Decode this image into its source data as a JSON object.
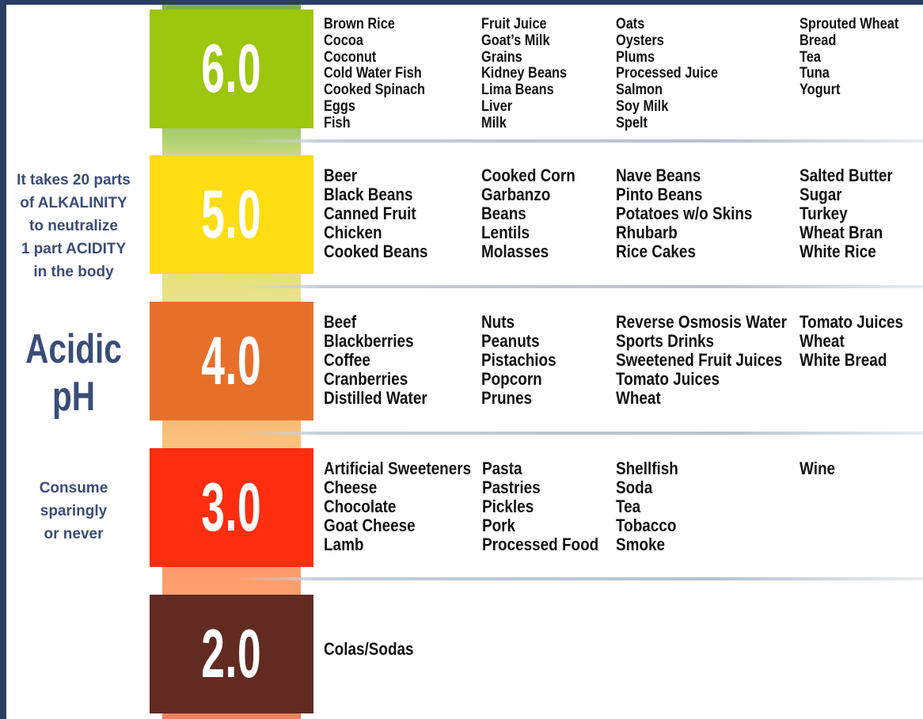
{
  "side": {
    "note_lines": [
      "It takes 20 parts",
      "of ALKALINITY",
      "to neutralize",
      "1 part ACIDITY",
      "in the body"
    ],
    "title_lines": [
      "Acidic",
      "pH"
    ],
    "consume_lines": [
      "Consume",
      "sparingly",
      "or never"
    ]
  },
  "colors": {
    "ph6": "#9dc60e",
    "ph5": "#fedd12",
    "ph4": "#e6702a",
    "ph3": "#fd2d0f",
    "ph2": "#612b22",
    "text_dark": "#111111",
    "side_text": "#3a4d78"
  },
  "levels": [
    {
      "label": "6.0",
      "columns": [
        [
          "Brown Rice",
          "Cocoa",
          "Coconut",
          "Cold Water Fish",
          "Cooked Spinach",
          "Eggs",
          "Fish"
        ],
        [
          "Fruit Juice",
          "Goat’s Milk",
          "Grains",
          "Kidney Beans",
          "Lima Beans",
          "Liver",
          "Milk"
        ],
        [
          "Oats",
          "Oysters",
          "Plums",
          "Processed Juice",
          "Salmon",
          "Soy Milk",
          "Spelt"
        ],
        [
          "Sprouted Wheat",
          "Bread",
          "Tea",
          "Tuna",
          "Yogurt"
        ]
      ]
    },
    {
      "label": "5.0",
      "columns": [
        [
          "Beer",
          "Black Beans",
          "Canned Fruit",
          "Chicken",
          "Cooked Beans"
        ],
        [
          "Cooked Corn",
          "Garbanzo",
          "Beans",
          "Lentils",
          "Molasses"
        ],
        [
          "Nave Beans",
          "Pinto Beans",
          "Potatoes w/o Skins",
          "Rhubarb",
          "Rice Cakes"
        ],
        [
          "Salted Butter",
          "Sugar",
          "Turkey",
          "Wheat Bran",
          "White Rice"
        ]
      ]
    },
    {
      "label": "4.0",
      "columns": [
        [
          "Beef",
          "Blackberries",
          "Coffee",
          "Cranberries",
          "Distilled Water"
        ],
        [
          "Nuts",
          "Peanuts",
          "Pistachios",
          "Popcorn",
          "Prunes"
        ],
        [
          "Reverse Osmosis Water",
          "Sports Drinks",
          "Sweetened Fruit Juices",
          "Tomato Juices",
          "Wheat"
        ],
        [
          "Tomato Juices",
          "Wheat",
          "White Bread"
        ]
      ]
    },
    {
      "label": "3.0",
      "columns": [
        [
          "Artificial Sweeteners",
          "Cheese",
          "Chocolate",
          "Goat Cheese",
          "Lamb"
        ],
        [
          "Pasta",
          "Pastries",
          "Pickles",
          "Pork",
          "Processed Food"
        ],
        [
          "Shellfish",
          "Soda",
          "Tea",
          "Tobacco",
          "Smoke"
        ],
        [
          "Wine"
        ]
      ]
    },
    {
      "label": "2.0",
      "columns": [
        [
          "Colas/Sodas"
        ]
      ]
    }
  ]
}
